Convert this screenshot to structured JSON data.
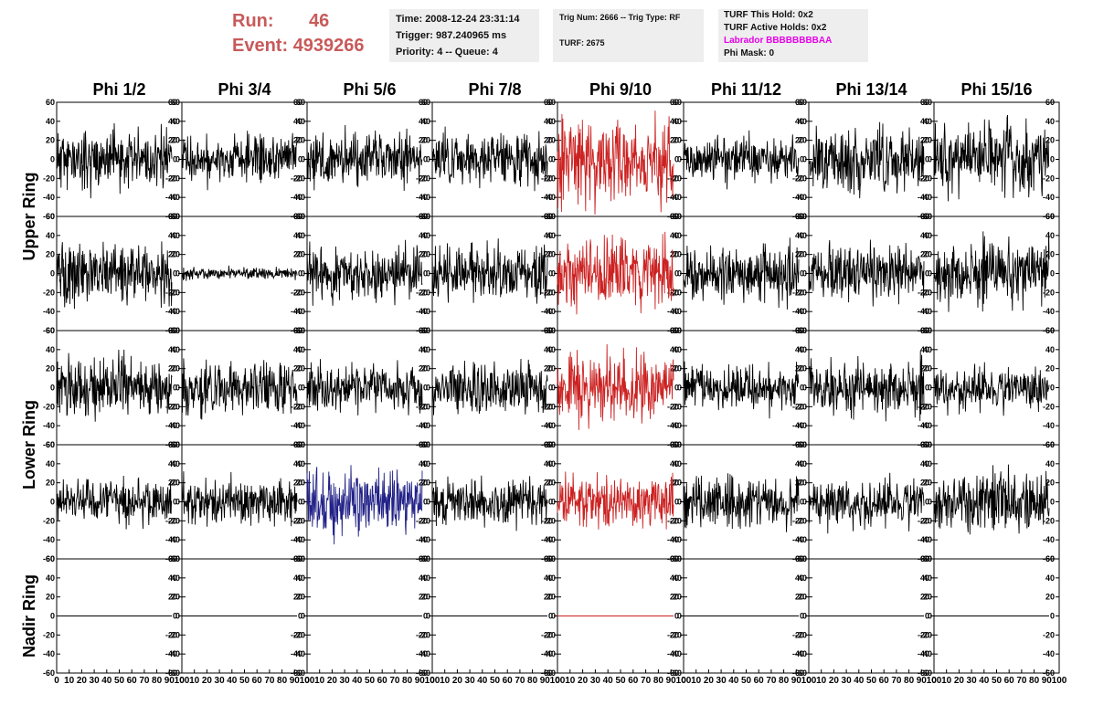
{
  "header": {
    "run_label": "Run:",
    "run_value": "46",
    "event_label": "Event:",
    "event_value": "4939266",
    "time": "Time: 2008-12-24 23:31:14",
    "trigger": "Trigger: 987.240965 ms",
    "priority": "Priority: 4 -- Queue: 4",
    "trig_num": "Trig Num: 2666 -- Trig Type: RF",
    "turf": "TURF: 2675",
    "turf_hold": "TURF This Hold: 0x2",
    "turf_active": "TURF Active Holds: 0x2",
    "labrador": "Labrador BBBBBBBBAA",
    "phi_mask": "Phi Mask: 0"
  },
  "colors": {
    "header_red": "#c85a5a",
    "trace_default": "#000000",
    "trace_red": "#cc2222",
    "trace_blue": "#222288",
    "labrador": "#e600e6",
    "box_bg": "#eeeeee"
  },
  "chart_data": {
    "type": "line",
    "columns": [
      "Phi 1/2",
      "Phi 3/4",
      "Phi 5/6",
      "Phi 7/8",
      "Phi 9/10",
      "Phi 11/12",
      "Phi 13/14",
      "Phi 15/16"
    ],
    "rows": [
      "Upper Ring",
      "Lower Ring",
      "Nadir Ring"
    ],
    "panel_rows": 5,
    "row_groups": [
      {
        "label": "Upper Ring",
        "panels": [
          0,
          1
        ]
      },
      {
        "label": "Lower Ring",
        "panels": [
          2,
          3
        ]
      },
      {
        "label": "Nadir Ring",
        "panels": [
          4
        ]
      }
    ],
    "xlim": [
      0,
      100
    ],
    "ylim": [
      -60,
      60
    ],
    "x_ticks": [
      0,
      10,
      20,
      30,
      40,
      50,
      60,
      70,
      80,
      90,
      100
    ],
    "y_ticks": [
      -60,
      -40,
      -20,
      0,
      20,
      40,
      60
    ],
    "trace_samples": 260,
    "trace_x_max": 92,
    "panels": [
      [
        {
          "a": 15,
          "s": 11,
          "c": "k"
        },
        {
          "a": 12,
          "s": 12,
          "c": "k"
        },
        {
          "a": 14,
          "s": 13,
          "c": "k"
        },
        {
          "a": 13,
          "s": 14,
          "c": "k"
        },
        {
          "a": 22,
          "s": 15,
          "c": "r"
        },
        {
          "a": 11,
          "s": 16,
          "c": "k"
        },
        {
          "a": 16,
          "s": 17,
          "c": "k"
        },
        {
          "a": 17,
          "s": 18,
          "c": "k"
        }
      ],
      [
        {
          "a": 15,
          "s": 21,
          "c": "k"
        },
        {
          "a": 3,
          "s": 22,
          "c": "k"
        },
        {
          "a": 14,
          "s": 23,
          "c": "k"
        },
        {
          "a": 14,
          "s": 24,
          "c": "k"
        },
        {
          "a": 17,
          "s": 25,
          "c": "r"
        },
        {
          "a": 14,
          "s": 26,
          "c": "k"
        },
        {
          "a": 13,
          "s": 27,
          "c": "k"
        },
        {
          "a": 16,
          "s": 28,
          "c": "k"
        }
      ],
      [
        {
          "a": 15,
          "s": 31,
          "c": "k"
        },
        {
          "a": 13,
          "s": 32,
          "c": "k"
        },
        {
          "a": 12,
          "s": 33,
          "c": "k"
        },
        {
          "a": 13,
          "s": 34,
          "c": "k"
        },
        {
          "a": 17,
          "s": 35,
          "c": "r"
        },
        {
          "a": 12,
          "s": 36,
          "c": "k"
        },
        {
          "a": 14,
          "s": 37,
          "c": "k"
        },
        {
          "a": 11,
          "s": 38,
          "c": "k"
        }
      ],
      [
        {
          "a": 11,
          "s": 41,
          "c": "k"
        },
        {
          "a": 12,
          "s": 42,
          "c": "k"
        },
        {
          "a": 17,
          "s": 43,
          "c": "b"
        },
        {
          "a": 12,
          "s": 44,
          "c": "k"
        },
        {
          "a": 14,
          "s": 45,
          "c": "r"
        },
        {
          "a": 13,
          "s": 46,
          "c": "k"
        },
        {
          "a": 12,
          "s": 47,
          "c": "k"
        },
        {
          "a": 16,
          "s": 48,
          "c": "k"
        }
      ],
      [
        {
          "a": 0,
          "s": 51,
          "c": "k"
        },
        {
          "a": 0,
          "s": 52,
          "c": "k"
        },
        {
          "a": 0,
          "s": 53,
          "c": "k"
        },
        {
          "a": 0,
          "s": 54,
          "c": "k"
        },
        {
          "a": 0,
          "s": 55,
          "c": "r"
        },
        {
          "a": 0,
          "s": 56,
          "c": "k"
        },
        {
          "a": 0,
          "s": 57,
          "c": "k"
        },
        {
          "a": 0,
          "s": 58,
          "c": "k"
        }
      ]
    ]
  }
}
